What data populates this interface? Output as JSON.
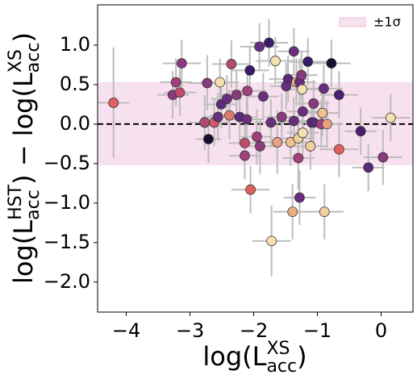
{
  "chart_data": {
    "type": "scatter",
    "xlabel": [
      {
        "t": "log(L"
      },
      {
        "sub": "acc",
        "sup": "XS"
      },
      {
        "t": ")"
      }
    ],
    "ylabel": [
      {
        "t": "log(L"
      },
      {
        "sub": "acc",
        "sup": "HST"
      },
      {
        "t": ") − log(L"
      },
      {
        "sub": "acc",
        "sup": "XS"
      },
      {
        "t": ")"
      }
    ],
    "xlim": [
      -4.45,
      0.5
    ],
    "ylim": [
      -2.38,
      1.51
    ],
    "xticks": [
      {
        "value": -4,
        "label": "−4"
      },
      {
        "value": -3,
        "label": "−3"
      },
      {
        "value": -2,
        "label": "−2"
      },
      {
        "value": -1,
        "label": "−1"
      },
      0
    ],
    "yticks": [
      {
        "value": -2,
        "label": "−2.0"
      },
      {
        "value": -1.5,
        "label": "−1.5"
      },
      {
        "value": -1,
        "label": "−1.0"
      },
      {
        "value": -0.5,
        "label": "−0.5"
      },
      {
        "value": 0,
        "label": "0.0"
      },
      {
        "value": 0.5,
        "label": "0.5"
      },
      {
        "value": 1,
        "label": "1.0"
      }
    ],
    "band": {
      "name": "±1σ",
      "range": [
        -0.52,
        0.53
      ],
      "color": "#f8e1ee"
    },
    "hline": 0,
    "legend": "upper right",
    "errorbar_color": "#bdbdbd",
    "x": [
      -4.2,
      -3.13,
      -3.22,
      -3.27,
      -3.16,
      -2.73,
      -2.77,
      -2.71,
      -2.62,
      -2.56,
      -2.53,
      -2.51,
      -2.42,
      -2.38,
      -2.35,
      -2.27,
      -2.22,
      -2.14,
      -2.14,
      -2.1,
      -2.06,
      -2.11,
      -2.05,
      -1.95,
      -1.91,
      -1.9,
      -1.85,
      -1.76,
      -1.73,
      -1.72,
      -1.66,
      -1.63,
      -1.56,
      -1.49,
      -1.46,
      -1.42,
      -1.39,
      -1.37,
      -1.37,
      -1.33,
      -1.3,
      -1.3,
      -1.28,
      -1.28,
      -1.25,
      -1.24,
      -1.23,
      -1.23,
      -1.15,
      -1.11,
      -1.09,
      -1.06,
      -1.06,
      -0.94,
      -0.92,
      -0.9,
      -0.89,
      -0.85,
      -0.78,
      -0.66,
      -0.66,
      -0.32,
      -0.2,
      0.03,
      0.15
    ],
    "y": [
      0.27,
      0.77,
      0.53,
      0.37,
      0.4,
      0.52,
      0.02,
      -0.19,
      0.02,
      0.09,
      0.53,
      0.25,
      0.32,
      0.11,
      0.76,
      0.37,
      0.09,
      -0.24,
      -0.4,
      0.42,
      0.68,
      0.06,
      -0.83,
      -0.16,
      0.98,
      -0.28,
      0.35,
      1.03,
      0.02,
      -1.48,
      0.8,
      -0.23,
      0.09,
      0.48,
      0.57,
      -0.23,
      -1.11,
      0.92,
      0.04,
      0.53,
      -0.18,
      -0.43,
      -0.93,
      0.53,
      0.62,
      0.44,
      -0.11,
      0.16,
      0.79,
      -0.28,
      0.02,
      0.02,
      0.26,
      0.0,
      0.14,
      0.45,
      -1.11,
      0.0,
      0.77,
      0.37,
      -0.32,
      -0.09,
      -0.55,
      -0.42,
      0.08
    ],
    "xerr": [
      0.25,
      0.3,
      0.25,
      0.25,
      0.25,
      0.3,
      0.25,
      0.2,
      0.25,
      0.25,
      0.3,
      0.25,
      0.25,
      0.3,
      0.3,
      0.25,
      0.25,
      0.25,
      0.25,
      0.3,
      0.3,
      0.25,
      0.3,
      0.25,
      0.3,
      0.25,
      0.25,
      0.3,
      0.25,
      0.3,
      0.3,
      0.25,
      0.25,
      0.25,
      0.3,
      0.25,
      0.3,
      0.25,
      0.25,
      0.3,
      0.25,
      0.25,
      0.25,
      0.25,
      0.25,
      0.25,
      0.25,
      0.25,
      0.3,
      0.25,
      0.25,
      0.25,
      0.25,
      0.25,
      0.25,
      0.3,
      0.3,
      0.25,
      0.3,
      0.3,
      0.3,
      0.25,
      0.25,
      0.3,
      0.3
    ],
    "yerr": [
      0.7,
      0.3,
      0.3,
      0.3,
      0.3,
      0.35,
      0.35,
      0.3,
      0.3,
      0.3,
      0.3,
      0.3,
      0.3,
      0.3,
      0.3,
      0.3,
      0.35,
      0.35,
      0.3,
      0.3,
      0.3,
      0.3,
      0.3,
      0.35,
      0.3,
      0.35,
      0.3,
      0.3,
      0.3,
      0.45,
      0.3,
      0.4,
      0.3,
      0.3,
      0.3,
      0.3,
      0.35,
      0.3,
      0.3,
      0.3,
      0.3,
      0.4,
      0.35,
      0.3,
      0.3,
      0.3,
      0.3,
      0.3,
      0.3,
      0.3,
      0.3,
      0.3,
      0.3,
      0.3,
      0.3,
      0.3,
      0.35,
      0.3,
      0.3,
      0.3,
      0.35,
      0.3,
      0.3,
      0.35,
      0.3
    ],
    "colors": [
      "#e0605e",
      "#8a3a7e",
      "#a0407d",
      "#8a3a7e",
      "#c04d6e",
      "#8a3a7e",
      "#b04a72",
      "#1a0f2e",
      "#d05a6a",
      "#6a2e7e",
      "#f5e0b0",
      "#5a2a7a",
      "#6a2e7e",
      "#e07a6e",
      "#b04a72",
      "#8a3a7e",
      "#5a2a7a",
      "#c04d6e",
      "#a0407d",
      "#a0407d",
      "#3a1a6a",
      "#6a2e7e",
      "#e0605e",
      "#a0407d",
      "#6a2e7e",
      "#8a3a7e",
      "#6a2e7e",
      "#3a1a6a",
      "#6a2e7e",
      "#f5e0b0",
      "#f5e0b0",
      "#e8a080",
      "#8a3a7e",
      "#6a2e7e",
      "#5a2a7a",
      "#f0c090",
      "#e8b080",
      "#6a2e7e",
      "#6a2e7e",
      "#e8b080",
      "#f0d0a0",
      "#a0407d",
      "#6a2e7e",
      "#6a2e7e",
      "#8a3a7e",
      "#f5e0b0",
      "#f5e0b0",
      "#6a2e7e",
      "#3a1a6a",
      "#f0d0a0",
      "#6a2e7e",
      "#5a2a7a",
      "#8a3a7e",
      "#a0407d",
      "#f0c090",
      "#6a2e7e",
      "#f0d0a0",
      "#e8a080",
      "#1a0f2e",
      "#4a1e70",
      "#e0605e",
      "#4a1e70",
      "#5a2a7a",
      "#8a3a7e",
      "#f5e0b0"
    ]
  }
}
